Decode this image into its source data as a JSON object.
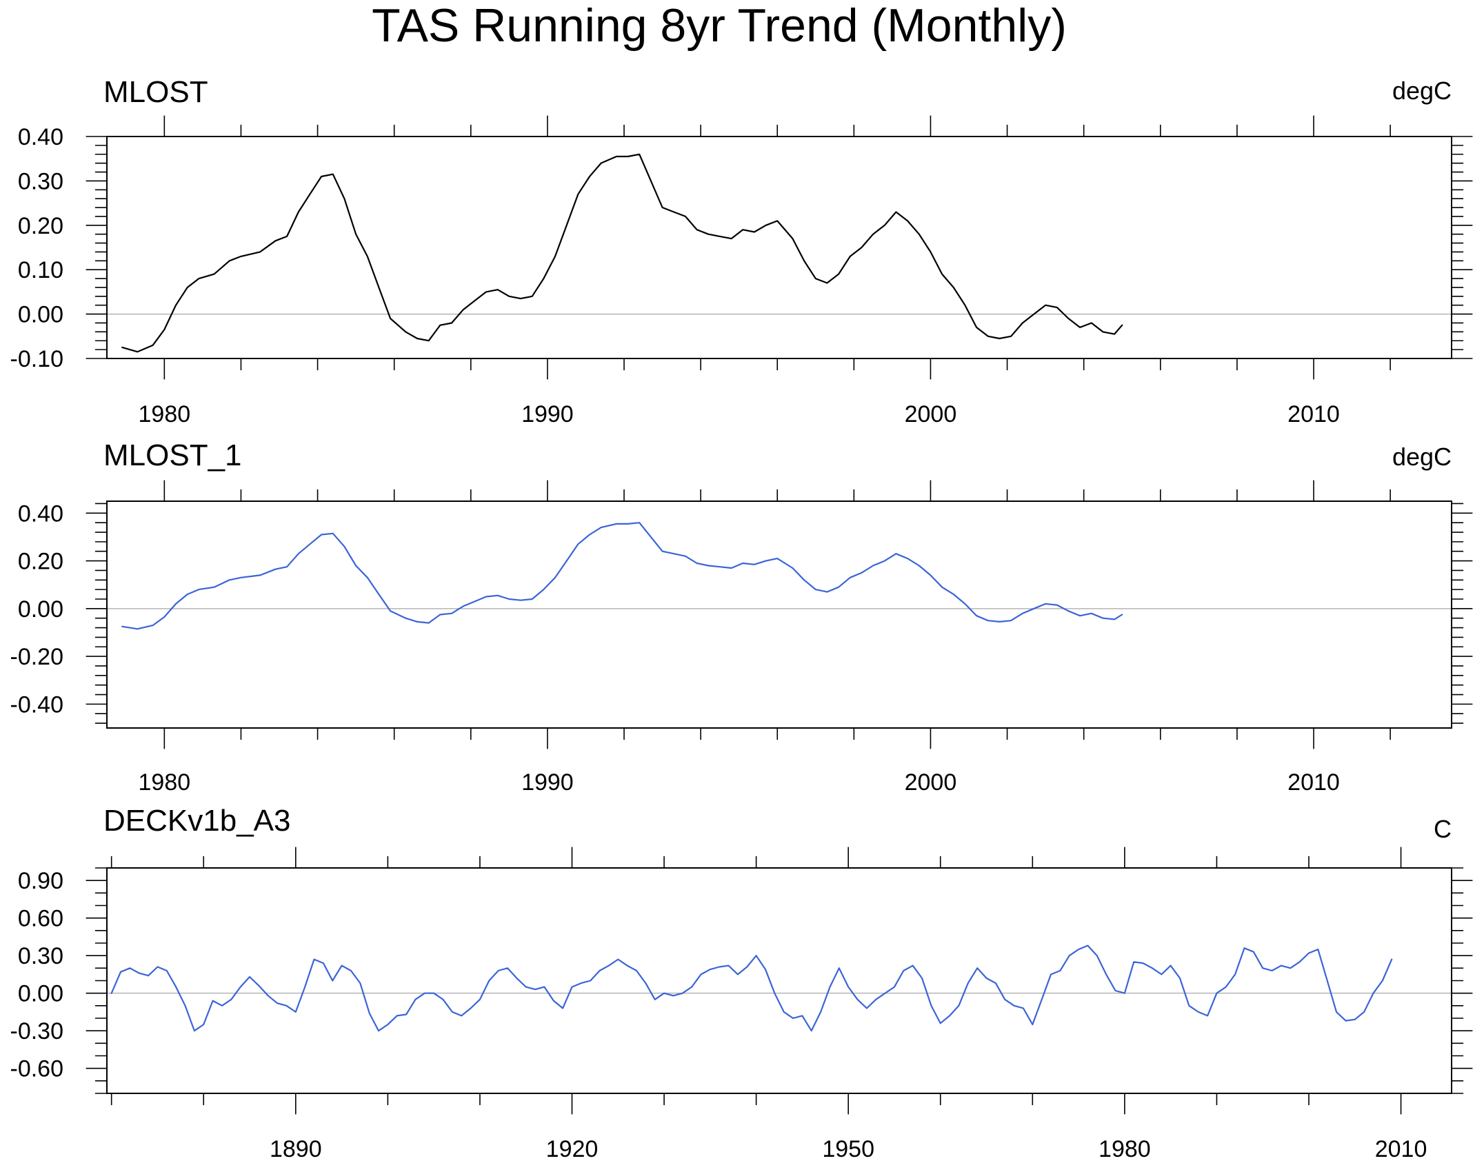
{
  "figure": {
    "title": "TAS Running 8yr Trend (Monthly)"
  },
  "chart_data": [
    {
      "type": "line",
      "title": "MLOST",
      "units": "degC",
      "xlim": [
        1978.5,
        2013.6
      ],
      "ylim": [
        -0.1,
        0.4
      ],
      "x_major_ticks": [
        1980,
        1990,
        2000,
        2010
      ],
      "x_minor_step": 2,
      "y_ticks": [
        0.4,
        0.3,
        0.2,
        0.1,
        0.0,
        -0.1
      ],
      "y_tick_labels": [
        "0.40",
        "0.30",
        "0.20",
        "0.10",
        "0.00",
        "-0.10"
      ],
      "y_minor_step": 0.02,
      "reference_line": 0.0,
      "series": [
        {
          "color": "#000000",
          "x": [
            1978.9,
            1979.3,
            1979.7,
            1980.0,
            1980.3,
            1980.6,
            1980.9,
            1981.3,
            1981.7,
            1982.0,
            1982.5,
            1982.9,
            1983.2,
            1983.5,
            1983.8,
            1984.1,
            1984.4,
            1984.7,
            1985.0,
            1985.3,
            1985.6,
            1985.9,
            1986.3,
            1986.6,
            1986.9,
            1987.2,
            1987.5,
            1987.8,
            1988.1,
            1988.4,
            1988.7,
            1989.0,
            1989.3,
            1989.6,
            1989.9,
            1990.2,
            1990.5,
            1990.8,
            1991.1,
            1991.4,
            1991.8,
            1992.1,
            1992.4,
            1992.7,
            1993.0,
            1993.3,
            1993.6,
            1993.9,
            1994.2,
            1994.5,
            1994.8,
            1995.1,
            1995.4,
            1995.7,
            1996.0,
            1996.4,
            1996.7,
            1997.0,
            1997.3,
            1997.6,
            1997.9,
            1998.2,
            1998.5,
            1998.8,
            1999.1,
            1999.4,
            1999.7,
            2000.0,
            2000.3,
            2000.6,
            2000.9,
            2001.2,
            2001.5,
            2001.8,
            2002.1,
            2002.4,
            2002.7,
            2003.0,
            2003.3,
            2003.6,
            2003.9,
            2004.2,
            2004.5,
            2004.8,
            2005.0
          ],
          "y": [
            -0.075,
            -0.085,
            -0.07,
            -0.035,
            0.02,
            0.06,
            0.08,
            0.09,
            0.12,
            0.13,
            0.14,
            0.165,
            0.175,
            0.23,
            0.27,
            0.31,
            0.315,
            0.26,
            0.18,
            0.13,
            0.06,
            -0.01,
            -0.04,
            -0.055,
            -0.06,
            -0.025,
            -0.02,
            0.01,
            0.03,
            0.05,
            0.055,
            0.04,
            0.035,
            0.04,
            0.08,
            0.13,
            0.2,
            0.27,
            0.31,
            0.34,
            0.355,
            0.355,
            0.36,
            0.3,
            0.24,
            0.23,
            0.22,
            0.19,
            0.18,
            0.175,
            0.17,
            0.19,
            0.185,
            0.2,
            0.21,
            0.17,
            0.12,
            0.08,
            0.07,
            0.09,
            0.13,
            0.15,
            0.18,
            0.2,
            0.23,
            0.21,
            0.18,
            0.14,
            0.09,
            0.06,
            0.02,
            -0.03,
            -0.05,
            -0.055,
            -0.05,
            -0.02,
            0.0,
            0.02,
            0.015,
            -0.01,
            -0.03,
            -0.02,
            -0.04,
            -0.045,
            -0.025
          ]
        }
      ]
    },
    {
      "type": "line",
      "title": "MLOST_1",
      "units": "degC",
      "xlim": [
        1978.5,
        2013.6
      ],
      "ylim": [
        -0.5,
        0.45
      ],
      "x_major_ticks": [
        1980,
        1990,
        2000,
        2010
      ],
      "x_minor_step": 2,
      "y_ticks": [
        0.4,
        0.2,
        0.0,
        -0.2,
        -0.4
      ],
      "y_tick_labels": [
        "0.40",
        "0.20",
        "0.00",
        "-0.20",
        "-0.40"
      ],
      "y_minor_step": 0.04,
      "reference_line": 0.0,
      "series": [
        {
          "color": "#3a64d8",
          "x": [
            1978.9,
            1979.3,
            1979.7,
            1980.0,
            1980.3,
            1980.6,
            1980.9,
            1981.3,
            1981.7,
            1982.0,
            1982.5,
            1982.9,
            1983.2,
            1983.5,
            1983.8,
            1984.1,
            1984.4,
            1984.7,
            1985.0,
            1985.3,
            1985.6,
            1985.9,
            1986.3,
            1986.6,
            1986.9,
            1987.2,
            1987.5,
            1987.8,
            1988.1,
            1988.4,
            1988.7,
            1989.0,
            1989.3,
            1989.6,
            1989.9,
            1990.2,
            1990.5,
            1990.8,
            1991.1,
            1991.4,
            1991.8,
            1992.1,
            1992.4,
            1992.7,
            1993.0,
            1993.3,
            1993.6,
            1993.9,
            1994.2,
            1994.5,
            1994.8,
            1995.1,
            1995.4,
            1995.7,
            1996.0,
            1996.4,
            1996.7,
            1997.0,
            1997.3,
            1997.6,
            1997.9,
            1998.2,
            1998.5,
            1998.8,
            1999.1,
            1999.4,
            1999.7,
            2000.0,
            2000.3,
            2000.6,
            2000.9,
            2001.2,
            2001.5,
            2001.8,
            2002.1,
            2002.4,
            2002.7,
            2003.0,
            2003.3,
            2003.6,
            2003.9,
            2004.2,
            2004.5,
            2004.8,
            2005.0
          ],
          "y": [
            -0.075,
            -0.085,
            -0.07,
            -0.035,
            0.02,
            0.06,
            0.08,
            0.09,
            0.12,
            0.13,
            0.14,
            0.165,
            0.175,
            0.23,
            0.27,
            0.31,
            0.315,
            0.26,
            0.18,
            0.13,
            0.06,
            -0.01,
            -0.04,
            -0.055,
            -0.06,
            -0.025,
            -0.02,
            0.01,
            0.03,
            0.05,
            0.055,
            0.04,
            0.035,
            0.04,
            0.08,
            0.13,
            0.2,
            0.27,
            0.31,
            0.34,
            0.355,
            0.355,
            0.36,
            0.3,
            0.24,
            0.23,
            0.22,
            0.19,
            0.18,
            0.175,
            0.17,
            0.19,
            0.185,
            0.2,
            0.21,
            0.17,
            0.12,
            0.08,
            0.07,
            0.09,
            0.13,
            0.15,
            0.18,
            0.2,
            0.23,
            0.21,
            0.18,
            0.14,
            0.09,
            0.06,
            0.02,
            -0.03,
            -0.05,
            -0.055,
            -0.05,
            -0.02,
            0.0,
            0.02,
            0.015,
            -0.01,
            -0.03,
            -0.02,
            -0.04,
            -0.045,
            -0.025
          ]
        }
      ]
    },
    {
      "type": "line",
      "title": "DECKv1b_A3",
      "units": "C",
      "xlim": [
        1869.5,
        2015.5
      ],
      "ylim": [
        -0.8,
        1.0
      ],
      "x_major_ticks": [
        1890,
        1920,
        1950,
        1980,
        2010
      ],
      "x_minor_step": 10,
      "x_minor_start": 1870,
      "y_ticks": [
        0.9,
        0.6,
        0.3,
        0.0,
        -0.3,
        -0.6
      ],
      "y_tick_labels": [
        "0.90",
        "0.60",
        "0.30",
        "0.00",
        "-0.30",
        "-0.60"
      ],
      "y_minor_step": 0.1,
      "reference_line": 0.0,
      "series": [
        {
          "color": "#3a64d8",
          "x": [
            1870.0,
            1871.0,
            1872.0,
            1873.0,
            1874.0,
            1875.0,
            1876.0,
            1877.0,
            1878.0,
            1879.0,
            1880.0,
            1881.0,
            1882.0,
            1883.0,
            1884.0,
            1885.0,
            1886.0,
            1887.0,
            1888.0,
            1889.0,
            1890.0,
            1891.0,
            1892.0,
            1893.0,
            1894.0,
            1895.0,
            1896.0,
            1897.0,
            1898.0,
            1899.0,
            1900.0,
            1901.0,
            1902.0,
            1903.0,
            1904.0,
            1905.0,
            1906.0,
            1907.0,
            1908.0,
            1909.0,
            1910.0,
            1911.0,
            1912.0,
            1913.0,
            1914.0,
            1915.0,
            1916.0,
            1917.0,
            1918.0,
            1919.0,
            1920.0,
            1921.0,
            1922.0,
            1923.0,
            1924.0,
            1925.0,
            1926.0,
            1927.0,
            1928.0,
            1929.0,
            1930.0,
            1931.0,
            1932.0,
            1933.0,
            1934.0,
            1935.0,
            1936.0,
            1937.0,
            1938.0,
            1939.0,
            1940.0,
            1941.0,
            1942.0,
            1943.0,
            1944.0,
            1945.0,
            1946.0,
            1947.0,
            1948.0,
            1949.0,
            1950.0,
            1951.0,
            1952.0,
            1953.0,
            1954.0,
            1955.0,
            1956.0,
            1957.0,
            1958.0,
            1959.0,
            1960.0,
            1961.0,
            1962.0,
            1963.0,
            1964.0,
            1965.0,
            1966.0,
            1967.0,
            1968.0,
            1969.0,
            1970.0,
            1971.0,
            1972.0,
            1973.0,
            1974.0,
            1975.0,
            1976.0,
            1977.0,
            1978.0,
            1979.0,
            1980.0,
            1981.0,
            1982.0,
            1983.0,
            1984.0,
            1985.0,
            1986.0,
            1987.0,
            1988.0,
            1989.0,
            1990.0,
            1991.0,
            1992.0,
            1993.0,
            1994.0,
            1995.0,
            1996.0,
            1997.0,
            1998.0,
            1999.0,
            2000.0,
            2001.0,
            2002.0,
            2003.0,
            2004.0,
            2005.0,
            2006.0,
            2007.0,
            2008.0,
            2009.0
          ],
          "y": [
            0.0,
            0.17,
            0.2,
            0.16,
            0.14,
            0.21,
            0.18,
            0.05,
            -0.1,
            -0.3,
            -0.25,
            -0.06,
            -0.1,
            -0.05,
            0.05,
            0.13,
            0.06,
            -0.02,
            -0.08,
            -0.1,
            -0.15,
            0.05,
            0.27,
            0.24,
            0.1,
            0.22,
            0.18,
            0.08,
            -0.16,
            -0.3,
            -0.25,
            -0.18,
            -0.17,
            -0.05,
            0.0,
            0.0,
            -0.05,
            -0.15,
            -0.18,
            -0.12,
            -0.05,
            0.1,
            0.18,
            0.2,
            0.12,
            0.05,
            0.03,
            0.05,
            -0.06,
            -0.12,
            0.05,
            0.08,
            0.1,
            0.18,
            0.22,
            0.27,
            0.22,
            0.18,
            0.08,
            -0.05,
            0.0,
            -0.02,
            0.0,
            0.05,
            0.15,
            0.19,
            0.21,
            0.22,
            0.15,
            0.21,
            0.3,
            0.19,
            0.0,
            -0.15,
            -0.2,
            -0.18,
            -0.3,
            -0.15,
            0.05,
            0.2,
            0.05,
            -0.05,
            -0.12,
            -0.05,
            0.0,
            0.05,
            0.18,
            0.22,
            0.12,
            -0.1,
            -0.24,
            -0.18,
            -0.1,
            0.08,
            0.2,
            0.12,
            0.08,
            -0.05,
            -0.1,
            -0.12,
            -0.25,
            -0.05,
            0.15,
            0.18,
            0.3,
            0.35,
            0.38,
            0.3,
            0.15,
            0.02,
            0.0,
            0.25,
            0.24,
            0.2,
            0.15,
            0.22,
            0.12,
            -0.1,
            -0.15,
            -0.18,
            0.0,
            0.05,
            0.15,
            0.36,
            0.33,
            0.2,
            0.18,
            0.22,
            0.2,
            0.25,
            0.32,
            0.35,
            0.1,
            -0.15,
            -0.22,
            -0.21,
            -0.15,
            0.0,
            0.1,
            0.27
          ]
        }
      ]
    }
  ]
}
